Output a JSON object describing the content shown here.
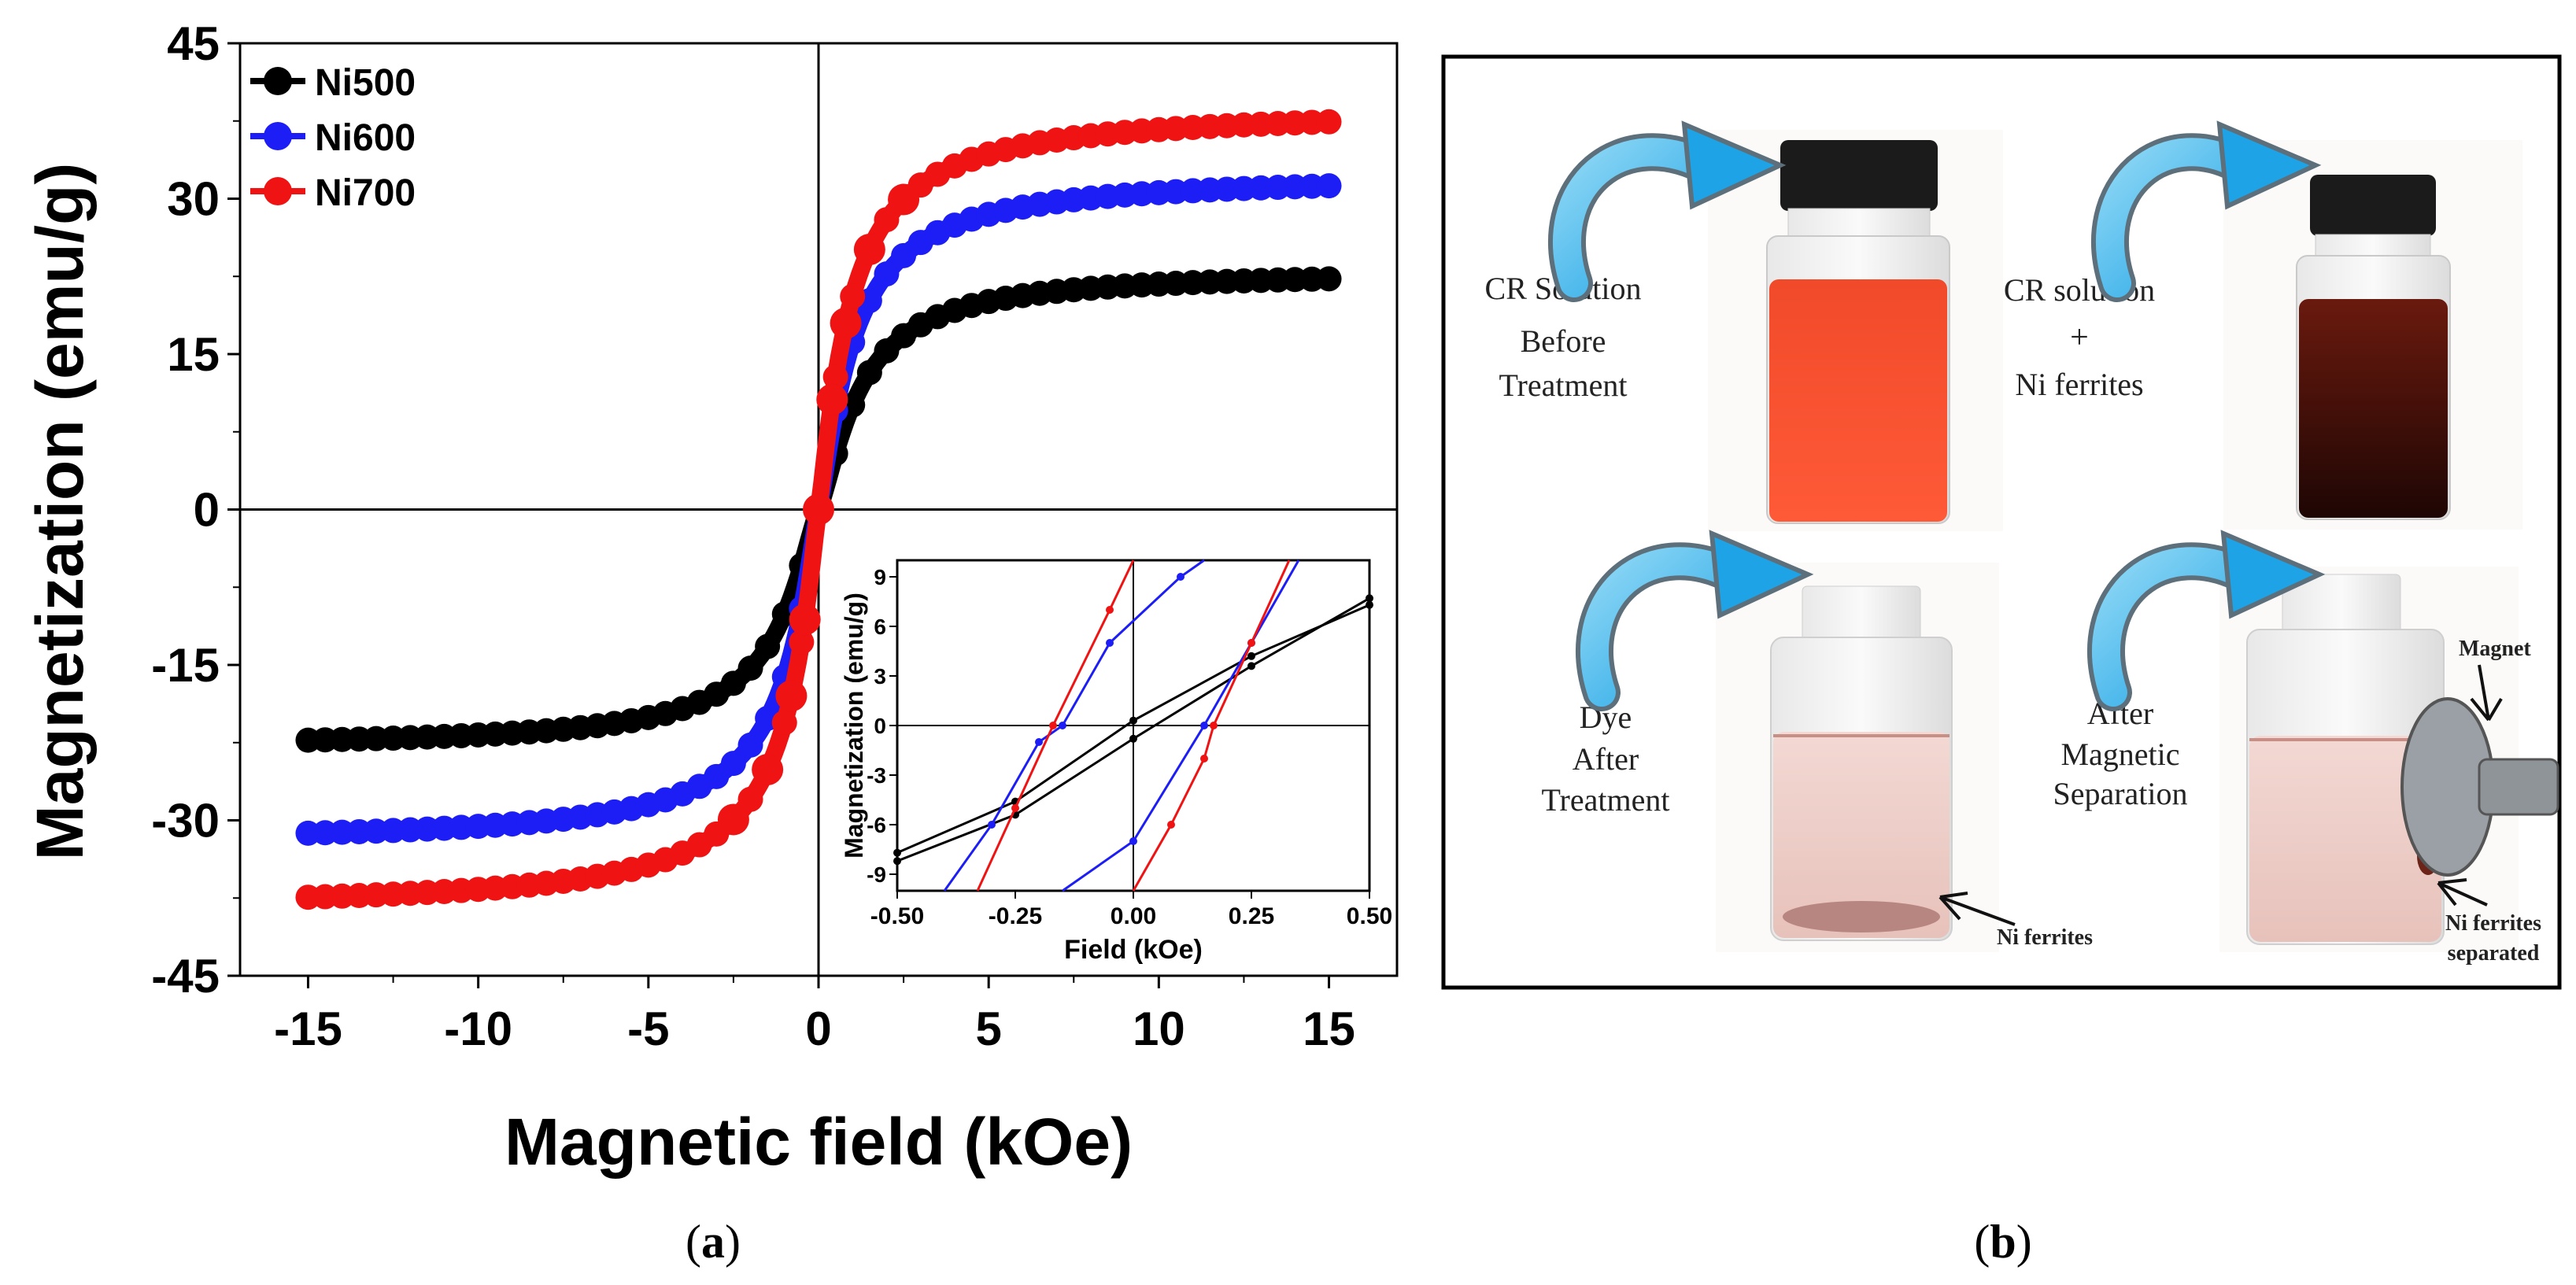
{
  "chart_data": [
    {
      "type": "line",
      "title": "",
      "panel_label": "(a)",
      "xlabel": "Magnetic field (kOe)",
      "ylabel": "Magnetization (emu/g)",
      "xlim": [
        -17,
        17
      ],
      "ylim": [
        -45,
        45
      ],
      "xticks": [
        -15,
        -10,
        -5,
        0,
        5,
        10,
        15
      ],
      "yticks": [
        -45,
        -30,
        -15,
        0,
        15,
        30,
        45
      ],
      "legend_position": "top-left",
      "series": [
        {
          "name": "Ni500",
          "color": "#000000",
          "Ms": 23,
          "H0": 1.2,
          "p": 1.35
        },
        {
          "name": "Ni600",
          "color": "#1d1df5",
          "Ms": 32.3,
          "H0": 1.0,
          "p": 1.25
        },
        {
          "name": "Ni700",
          "color": "#f01313",
          "Ms": 38.7,
          "H0": 0.9,
          "p": 1.2
        }
      ]
    },
    {
      "type": "line",
      "title": "",
      "role": "inset",
      "xlabel": "Field (kOe)",
      "ylabel": "Magnetization (emu/g)",
      "xlim": [
        -0.5,
        0.5
      ],
      "ylim": [
        -10,
        10
      ],
      "xticks": [
        "-0.50",
        "-0.25",
        "0.00",
        "0.25",
        "0.50"
      ],
      "yticks": [
        -9,
        -6,
        -3,
        0,
        3,
        6,
        9
      ],
      "series": [
        {
          "name": "Ni500",
          "color": "#000000",
          "upper": [
            [
              -0.5,
              -7.7
            ],
            [
              -0.25,
              -4.6
            ],
            [
              0,
              0.3
            ],
            [
              0.25,
              4.2
            ],
            [
              0.5,
              7.3
            ]
          ],
          "lower": [
            [
              -0.5,
              -8.2
            ],
            [
              -0.25,
              -5.4
            ],
            [
              0,
              -0.8
            ],
            [
              0.25,
              3.6
            ],
            [
              0.5,
              7.7
            ]
          ]
        },
        {
          "name": "Ni600",
          "color": "#1d1df5",
          "upper": [
            [
              -0.4,
              -10
            ],
            [
              -0.3,
              -6
            ],
            [
              -0.2,
              -1
            ],
            [
              -0.15,
              0
            ],
            [
              -0.05,
              5
            ],
            [
              0.1,
              9
            ],
            [
              0.15,
              10
            ]
          ],
          "lower": [
            [
              -0.15,
              -10
            ],
            [
              0,
              -7
            ],
            [
              0.15,
              0
            ],
            [
              0.25,
              5
            ],
            [
              0.35,
              10
            ]
          ]
        },
        {
          "name": "Ni700",
          "color": "#f01313",
          "upper": [
            [
              -0.33,
              -10
            ],
            [
              -0.25,
              -5
            ],
            [
              -0.17,
              0
            ],
            [
              -0.05,
              7
            ],
            [
              0,
              10
            ]
          ],
          "lower": [
            [
              0,
              -10
            ],
            [
              0.08,
              -6
            ],
            [
              0.15,
              -2
            ],
            [
              0.17,
              0
            ],
            [
              0.25,
              5
            ],
            [
              0.33,
              10
            ]
          ]
        }
      ]
    }
  ],
  "panel_b": {
    "label": "(b)",
    "photos": [
      {
        "lines": [
          "CR Solution",
          "Before",
          "Treatment"
        ]
      },
      {
        "lines": [
          "CR solution",
          "+",
          "Ni ferrites"
        ]
      },
      {
        "lines": [
          "Dye",
          "After",
          "Treatment"
        ],
        "annotation": "Ni ferrites"
      },
      {
        "lines": [
          "After",
          "Magnetic",
          "Separation"
        ],
        "annotation_magnet": "Magnet",
        "annotation_separated": [
          "Ni ferrites",
          "separated"
        ]
      }
    ]
  }
}
